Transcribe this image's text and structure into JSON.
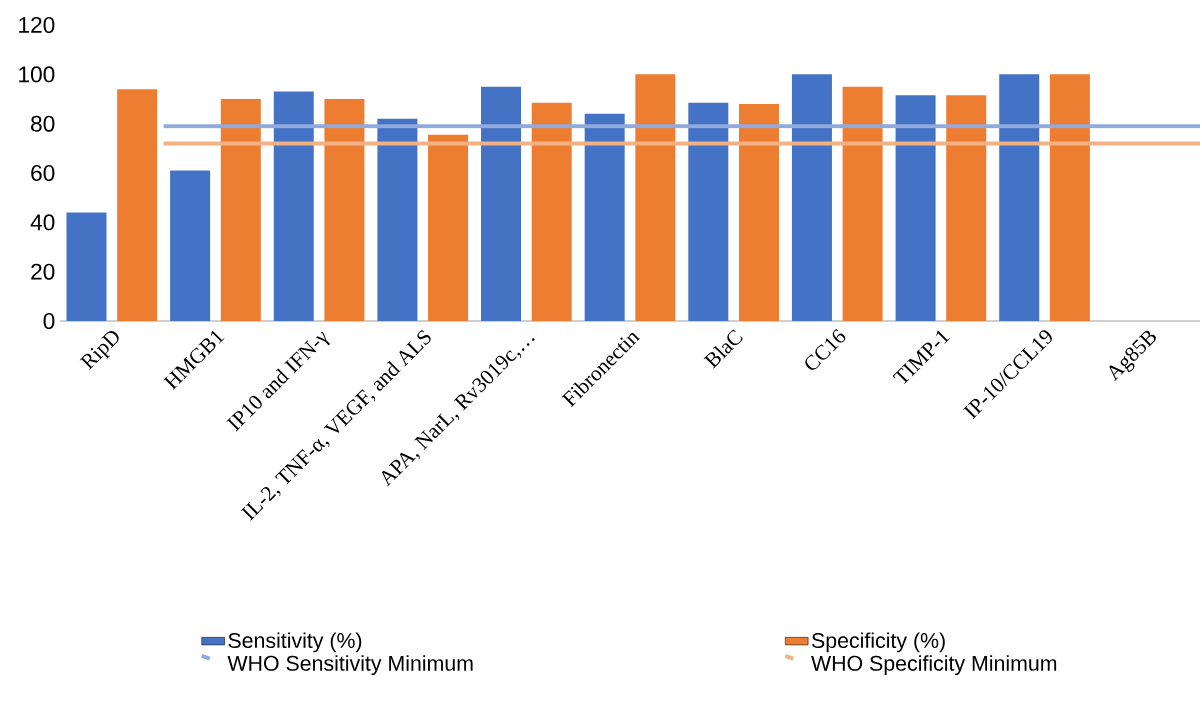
{
  "chart_data": {
    "type": "bar",
    "categories": [
      "RipD",
      "HMGB1",
      "IP10 and IFN-γ",
      "IL-2, TNF-α, VEGF, and ALS",
      "APA, NarL, Rv3019c,…",
      "Fibronectin",
      "BlaC",
      "CC16",
      "TIMP-1",
      "IP-10/CCL19",
      "Ag85B"
    ],
    "series": [
      {
        "name": "Sensitivity (%)",
        "color": "#4472c4",
        "values": [
          44,
          61,
          93,
          82,
          95,
          84,
          88.5,
          100,
          91.5,
          100,
          null
        ]
      },
      {
        "name": "Specificity (%)",
        "color": "#ed7d31",
        "values": [
          94,
          90,
          90,
          75.5,
          88.5,
          100,
          88,
          95,
          91.5,
          100,
          null
        ]
      }
    ],
    "ylim": [
      0,
      120
    ],
    "yticks": [
      0,
      20,
      40,
      60,
      80,
      100,
      120
    ],
    "ref_lines": [
      {
        "axis": "y",
        "value": 79,
        "label": "WHO Sensitivity Minimum",
        "color": "#8faadc"
      },
      {
        "axis": "y",
        "value": 72,
        "label": "WHO Specificity Minimum",
        "color": "#f4b183"
      }
    ],
    "legend": "bottom"
  }
}
